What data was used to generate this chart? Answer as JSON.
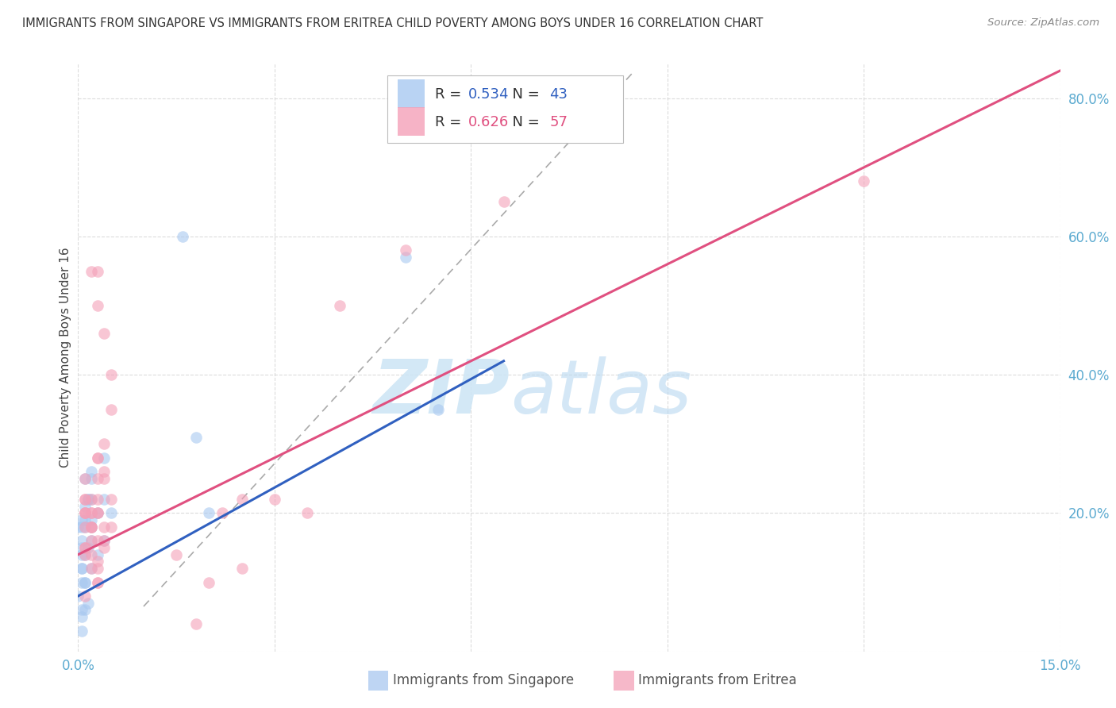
{
  "title": "IMMIGRANTS FROM SINGAPORE VS IMMIGRANTS FROM ERITREA CHILD POVERTY AMONG BOYS UNDER 16 CORRELATION CHART",
  "source": "Source: ZipAtlas.com",
  "ylabel": "Child Poverty Among Boys Under 16",
  "xlim": [
    0.0,
    0.15
  ],
  "ylim": [
    0.0,
    0.85
  ],
  "singapore_R": 0.534,
  "singapore_N": 43,
  "eritrea_R": 0.626,
  "eritrea_N": 57,
  "singapore_color": "#a8c8f0",
  "eritrea_color": "#f4a0b8",
  "singapore_line_color": "#3060c0",
  "eritrea_line_color": "#e05080",
  "singapore_scatter_x": [
    0.0005,
    0.001,
    0.0015,
    0.0005,
    0.0,
    0.002,
    0.001,
    0.0015,
    0.0005,
    0.003,
    0.004,
    0.002,
    0.0015,
    0.001,
    0.0005,
    0.0,
    0.0005,
    0.004,
    0.005,
    0.002,
    0.05,
    0.018,
    0.016,
    0.02,
    0.002,
    0.002,
    0.003,
    0.004,
    0.002,
    0.001,
    0.0005,
    0.0005,
    0.001,
    0.0015,
    0.0005,
    0.0005,
    0.055,
    0.0005,
    0.001,
    0.002,
    0.001,
    0.0005,
    0.001
  ],
  "singapore_scatter_y": [
    0.12,
    0.14,
    0.22,
    0.16,
    0.18,
    0.25,
    0.18,
    0.15,
    0.12,
    0.2,
    0.22,
    0.26,
    0.22,
    0.25,
    0.18,
    0.08,
    0.1,
    0.28,
    0.2,
    0.19,
    0.57,
    0.31,
    0.6,
    0.2,
    0.16,
    0.12,
    0.14,
    0.16,
    0.18,
    0.19,
    0.05,
    0.03,
    0.1,
    0.07,
    0.19,
    0.15,
    0.35,
    0.14,
    0.21,
    0.22,
    0.1,
    0.06,
    0.06
  ],
  "eritrea_scatter_x": [
    0.001,
    0.002,
    0.003,
    0.001,
    0.001,
    0.003,
    0.002,
    0.004,
    0.005,
    0.003,
    0.002,
    0.001,
    0.001,
    0.002,
    0.004,
    0.003,
    0.002,
    0.001,
    0.003,
    0.004,
    0.005,
    0.003,
    0.003,
    0.004,
    0.005,
    0.002,
    0.003,
    0.002,
    0.001,
    0.001,
    0.002,
    0.003,
    0.004,
    0.025,
    0.022,
    0.035,
    0.04,
    0.065,
    0.05,
    0.03,
    0.12,
    0.025,
    0.02,
    0.015,
    0.018,
    0.001,
    0.002,
    0.003,
    0.001,
    0.001,
    0.002,
    0.003,
    0.004,
    0.005,
    0.003,
    0.003,
    0.004
  ],
  "eritrea_scatter_y": [
    0.2,
    0.22,
    0.25,
    0.18,
    0.2,
    0.22,
    0.2,
    0.26,
    0.22,
    0.2,
    0.18,
    0.22,
    0.25,
    0.18,
    0.25,
    0.2,
    0.16,
    0.15,
    0.28,
    0.3,
    0.35,
    0.28,
    0.5,
    0.46,
    0.4,
    0.18,
    0.55,
    0.55,
    0.2,
    0.15,
    0.14,
    0.13,
    0.15,
    0.22,
    0.2,
    0.2,
    0.5,
    0.65,
    0.58,
    0.22,
    0.68,
    0.12,
    0.1,
    0.14,
    0.04,
    0.22,
    0.2,
    0.1,
    0.08,
    0.14,
    0.12,
    0.16,
    0.16,
    0.18,
    0.12,
    0.1,
    0.18
  ],
  "singapore_line_x": [
    0.0,
    0.065
  ],
  "singapore_line_y": [
    0.08,
    0.42
  ],
  "eritrea_line_x": [
    0.0,
    0.15
  ],
  "eritrea_line_y": [
    0.14,
    0.84
  ],
  "diagonal_line_x": [
    0.01,
    0.085
  ],
  "diagonal_line_y": [
    0.065,
    0.84
  ],
  "watermark_zip": "ZIP",
  "watermark_atlas": "atlas",
  "background_color": "#ffffff",
  "grid_color": "#d8d8d8",
  "tick_color": "#5baad0",
  "ylabel_color": "#444444",
  "title_color": "#333333",
  "source_color": "#888888"
}
